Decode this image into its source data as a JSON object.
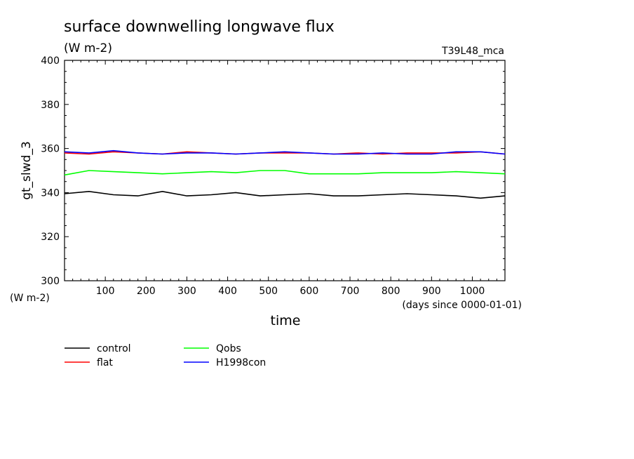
{
  "chart_data": {
    "type": "line",
    "title": "surface downwelling longwave flux",
    "subtitle": "(W m-2)",
    "run_label": "T39L48_mca",
    "xlabel": "time",
    "x_units": "(days since 0000-01-01)",
    "ylabel": "gt_slwd_3",
    "y_units": "(W m-2)",
    "xlim": [
      0,
      1080
    ],
    "ylim": [
      300,
      400
    ],
    "x_ticks": [
      100,
      200,
      300,
      400,
      500,
      600,
      700,
      800,
      900,
      1000
    ],
    "y_ticks": [
      300,
      320,
      340,
      360,
      380,
      400
    ],
    "grid": false,
    "legend_position": "bottom-left",
    "series": [
      {
        "name": "control",
        "color": "#000000",
        "x": [
          0,
          60,
          120,
          180,
          240,
          300,
          360,
          420,
          480,
          540,
          600,
          660,
          720,
          780,
          840,
          900,
          960,
          1020,
          1080
        ],
        "y": [
          339.5,
          340.5,
          339,
          338.5,
          340.5,
          338.5,
          339,
          340,
          338.5,
          339,
          339.5,
          338.5,
          338.5,
          339,
          339.5,
          339,
          338.5,
          337.5,
          338.5
        ]
      },
      {
        "name": "flat",
        "color": "#ff0000",
        "x": [
          0,
          60,
          120,
          180,
          240,
          300,
          360,
          420,
          480,
          540,
          600,
          660,
          720,
          780,
          840,
          900,
          960,
          1020,
          1080
        ],
        "y": [
          358,
          357.5,
          358.5,
          358,
          357.5,
          358.5,
          358,
          357.5,
          358,
          358,
          358,
          357.5,
          358,
          357.5,
          358,
          358,
          358,
          358.5,
          357.5
        ]
      },
      {
        "name": "Qobs",
        "color": "#00ff00",
        "x": [
          0,
          60,
          120,
          180,
          240,
          300,
          360,
          420,
          480,
          540,
          600,
          660,
          720,
          780,
          840,
          900,
          960,
          1020,
          1080
        ],
        "y": [
          348,
          350,
          349.5,
          349,
          348.5,
          349,
          349.5,
          349,
          350,
          350,
          348.5,
          348.5,
          348.5,
          349,
          349,
          349,
          349.5,
          349,
          348.5
        ]
      },
      {
        "name": "H1998con",
        "color": "#0000ff",
        "x": [
          0,
          60,
          120,
          180,
          240,
          300,
          360,
          420,
          480,
          540,
          600,
          660,
          720,
          780,
          840,
          900,
          960,
          1020,
          1080
        ],
        "y": [
          358.5,
          358,
          359,
          358,
          357.5,
          358,
          358,
          357.5,
          358,
          358.5,
          358,
          357.5,
          357.5,
          358,
          357.5,
          357.5,
          358.5,
          358.5,
          357.5
        ]
      }
    ]
  }
}
